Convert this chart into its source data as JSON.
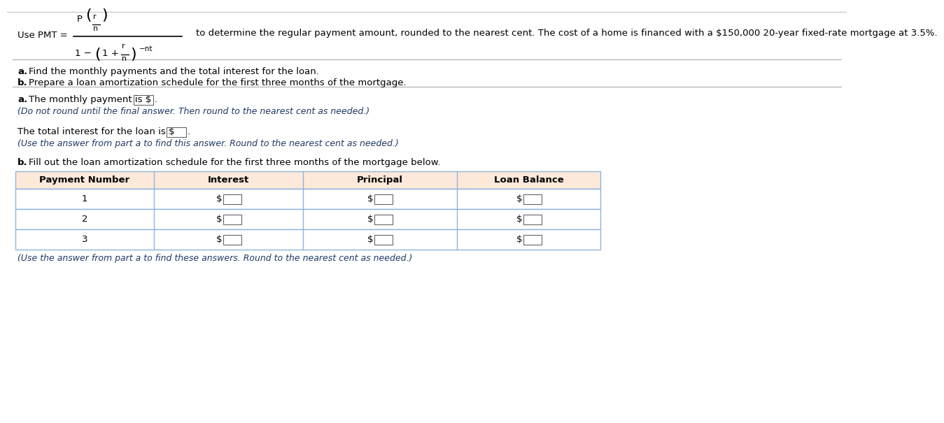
{
  "bg_color": "#ffffff",
  "formula_desc": "to determine the regular payment amount, rounded to the nearest cent. The cost of a home is financed with a $150,000 20-year fixed-rate mortgage at 3.5%.",
  "line_a": "a. Find the monthly payments and the total interest for the loan.",
  "line_b": "b. Prepare a loan amortization schedule for the first three months of the mortgage.",
  "section_a_prefix": "a.",
  "section_a_text": " The monthly payment is $",
  "section_a_note": "(Do not round until the final answer. Then round to the nearest cent as needed.)",
  "section_total_text": "The total interest for the loan is $",
  "section_total_note": "(Use the answer from part a to find this answer. Round to the nearest cent as needed.)",
  "section_b_prefix": "b.",
  "section_b_text": " Fill out the loan amortization schedule for the first three months of the mortgage below.",
  "table_headers": [
    "Payment Number",
    "Interest",
    "Principal",
    "Loan Balance"
  ],
  "table_rows": [
    "1",
    "2",
    "3"
  ],
  "table_note": "(Use the answer from part a to find these answers. Round to the nearest cent as needed.)",
  "header_bg": "#fde9d9",
  "table_border": "#8db3e2",
  "blue_color": "#1f3864",
  "sep_color": "#aaaaaa",
  "fs": 9.5,
  "fs_small": 9.0
}
